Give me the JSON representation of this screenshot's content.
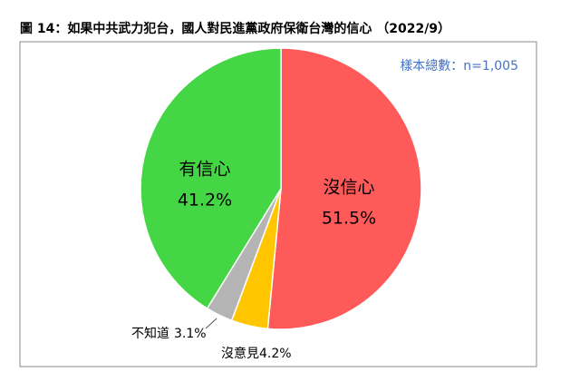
{
  "chart_data": {
    "type": "pie",
    "title": "圖 14：如果中共武力犯台，國人對民進黨政府保衛台灣的信心 （2022/9）",
    "note": "樣本總數：n=1,005",
    "categories": [
      "沒信心",
      "沒意見",
      "不知道",
      "有信心"
    ],
    "values": [
      51.5,
      4.2,
      3.1,
      41.2
    ],
    "value_labels": [
      "51.5%",
      "4.2%",
      "3.1%",
      "41.2%"
    ],
    "colors": [
      "#ff5a5a",
      "#ffc600",
      "#b4b4b4",
      "#44d644"
    ]
  }
}
